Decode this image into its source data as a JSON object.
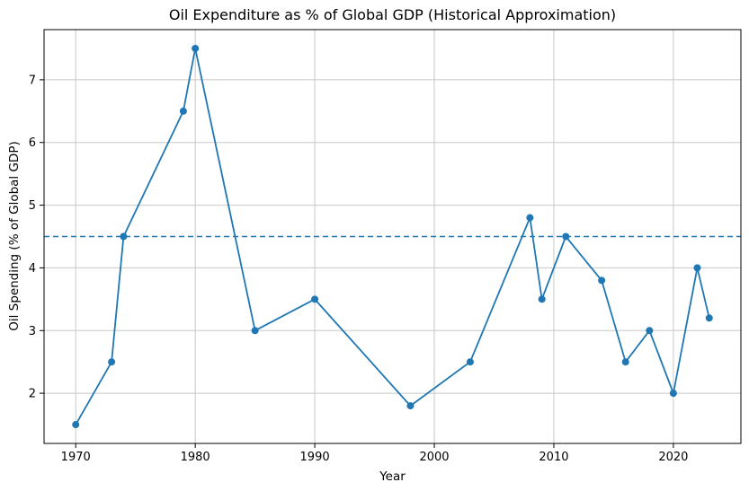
{
  "chart_data": {
    "type": "line",
    "title": "Oil Expenditure as % of Global GDP (Historical Approximation)",
    "xlabel": "Year",
    "ylabel": "Oil Spending (% of Global GDP)",
    "x": [
      1970,
      1973,
      1974,
      1979,
      1980,
      1985,
      1990,
      1998,
      2003,
      2008,
      2009,
      2011,
      2014,
      2016,
      2018,
      2020,
      2022,
      2023
    ],
    "y": [
      1.5,
      2.5,
      4.5,
      6.5,
      7.5,
      3.0,
      3.5,
      1.8,
      2.5,
      4.8,
      3.5,
      4.5,
      3.8,
      2.5,
      3.0,
      2.0,
      4.0,
      3.2
    ],
    "xlim": [
      1967.35,
      2025.65
    ],
    "ylim": [
      1.2,
      7.8
    ],
    "xticks": [
      1970,
      1980,
      1990,
      2000,
      2010,
      2020
    ],
    "yticks": [
      2,
      3,
      4,
      5,
      6,
      7
    ],
    "grid": true,
    "legend": false,
    "marker": "circle",
    "reference_line": {
      "y": 4.5,
      "style": "dashed"
    },
    "colors": {
      "line": "#1f77b4",
      "marker": "#1f77b4",
      "reference": "#1f77b4",
      "grid": "#c8c8c8",
      "spine": "#000000",
      "text": "#000000",
      "background": "#ffffff"
    }
  }
}
